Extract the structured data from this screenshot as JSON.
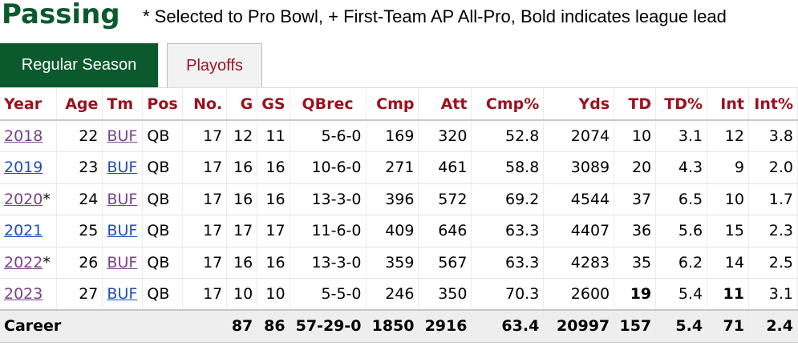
{
  "title": "Passing",
  "note": "* Selected to Pro Bowl, + First-Team AP All-Pro, Bold indicates league lead",
  "tabs": [
    {
      "label": "Regular Season",
      "active": true
    },
    {
      "label": "Playoffs",
      "active": false
    }
  ],
  "columns": [
    "Year",
    "Age",
    "Tm",
    "Pos",
    "No.",
    "G",
    "GS",
    "QBrec",
    "Cmp",
    "Att",
    "Cmp%",
    "Yds",
    "TD",
    "TD%",
    "Int",
    "Int%"
  ],
  "rows": [
    {
      "year": "2018",
      "year_mark": "",
      "age": "22",
      "tm": "BUF",
      "pos": "QB",
      "no": "17",
      "g": "12",
      "gs": "11",
      "qbrec": "5-6-0",
      "cmp": "169",
      "att": "320",
      "cmp_pct": "52.8",
      "yds": "2074",
      "td": "10",
      "td_pct": "3.1",
      "int": "12",
      "int_pct": "3.8"
    },
    {
      "year": "2019",
      "year_mark": "",
      "age": "23",
      "tm": "BUF",
      "pos": "QB",
      "no": "17",
      "g": "16",
      "gs": "16",
      "qbrec": "10-6-0",
      "cmp": "271",
      "att": "461",
      "cmp_pct": "58.8",
      "yds": "3089",
      "td": "20",
      "td_pct": "4.3",
      "int": "9",
      "int_pct": "2.0"
    },
    {
      "year": "2020",
      "year_mark": "*",
      "age": "24",
      "tm": "BUF",
      "pos": "QB",
      "no": "17",
      "g": "16",
      "gs": "16",
      "qbrec": "13-3-0",
      "cmp": "396",
      "att": "572",
      "cmp_pct": "69.2",
      "yds": "4544",
      "td": "37",
      "td_pct": "6.5",
      "int": "10",
      "int_pct": "1.7"
    },
    {
      "year": "2021",
      "year_mark": "",
      "age": "25",
      "tm": "BUF",
      "pos": "QB",
      "no": "17",
      "g": "17",
      "gs": "17",
      "qbrec": "11-6-0",
      "cmp": "409",
      "att": "646",
      "cmp_pct": "63.3",
      "yds": "4407",
      "td": "36",
      "td_pct": "5.6",
      "int": "15",
      "int_pct": "2.3"
    },
    {
      "year": "2022",
      "year_mark": "*",
      "age": "26",
      "tm": "BUF",
      "pos": "QB",
      "no": "17",
      "g": "16",
      "gs": "16",
      "qbrec": "13-3-0",
      "cmp": "359",
      "att": "567",
      "cmp_pct": "63.3",
      "yds": "4283",
      "td": "35",
      "td_pct": "6.2",
      "int": "14",
      "int_pct": "2.5"
    },
    {
      "year": "2023",
      "year_mark": "",
      "age": "27",
      "tm": "BUF",
      "pos": "QB",
      "no": "17",
      "g": "10",
      "gs": "10",
      "qbrec": "5-5-0",
      "cmp": "246",
      "att": "350",
      "cmp_pct": "70.3",
      "yds": "2600",
      "td": "19",
      "td_pct": "5.4",
      "int": "11",
      "int_pct": "3.1"
    }
  ],
  "career": {
    "label": "Career",
    "g": "87",
    "gs": "86",
    "qbrec": "57-29-0",
    "cmp": "1850",
    "att": "2916",
    "cmp_pct": "63.4",
    "yds": "20997",
    "td": "157",
    "td_pct": "5.4",
    "int": "71",
    "int_pct": "2.4"
  },
  "colors": {
    "title": "#0b5a2e",
    "header": "#9b111e",
    "visited_link": "#7a3f8c",
    "link": "#1f4fb5",
    "tab_active_bg": "#0b5a2e"
  }
}
